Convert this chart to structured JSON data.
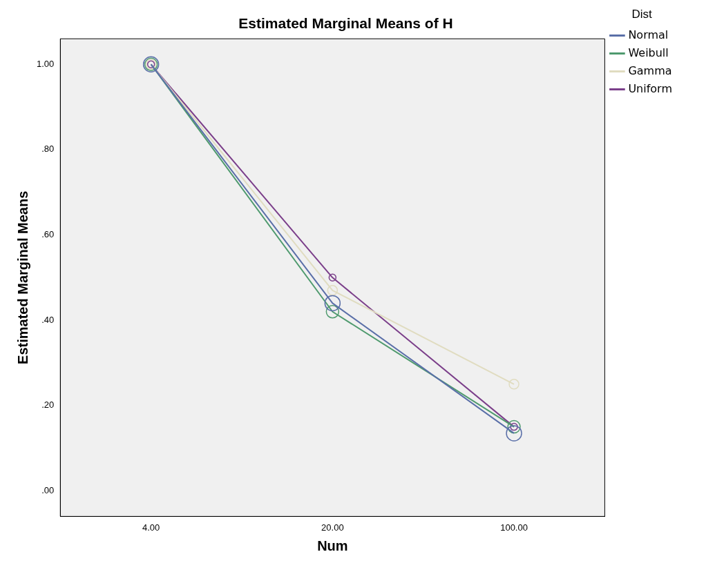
{
  "chart_data": {
    "type": "line",
    "title": "Estimated Marginal Means of H",
    "xlabel": "Num",
    "ylabel": "Estimated Marginal Means",
    "legend_title": "Dist",
    "categories": [
      "4.00",
      "20.00",
      "100.00"
    ],
    "series": [
      {
        "name": "Normal",
        "color": "#5a6fa8",
        "values": [
          1.0,
          0.44,
          0.135
        ]
      },
      {
        "name": "Weibull",
        "color": "#4f9a6e",
        "values": [
          1.0,
          0.42,
          0.15
        ]
      },
      {
        "name": "Gamma",
        "color": "#e0dcc0",
        "values": [
          1.0,
          0.47,
          0.25
        ]
      },
      {
        "name": "Uniform",
        "color": "#7b3f8a",
        "values": [
          1.0,
          0.5,
          0.15
        ]
      }
    ],
    "ylim": [
      -0.06,
      1.06
    ],
    "yticks": [
      {
        "value": 0,
        "label": ".00"
      },
      {
        "value": 0.2,
        "label": ".20"
      },
      {
        "value": 0.4,
        "label": ".40"
      },
      {
        "value": 0.6,
        "label": ".60"
      },
      {
        "value": 0.8,
        "label": ".80"
      },
      {
        "value": 1,
        "label": "1.00"
      }
    ],
    "legend": "right",
    "grid": false,
    "marker": "circle",
    "line_style": "solid"
  }
}
